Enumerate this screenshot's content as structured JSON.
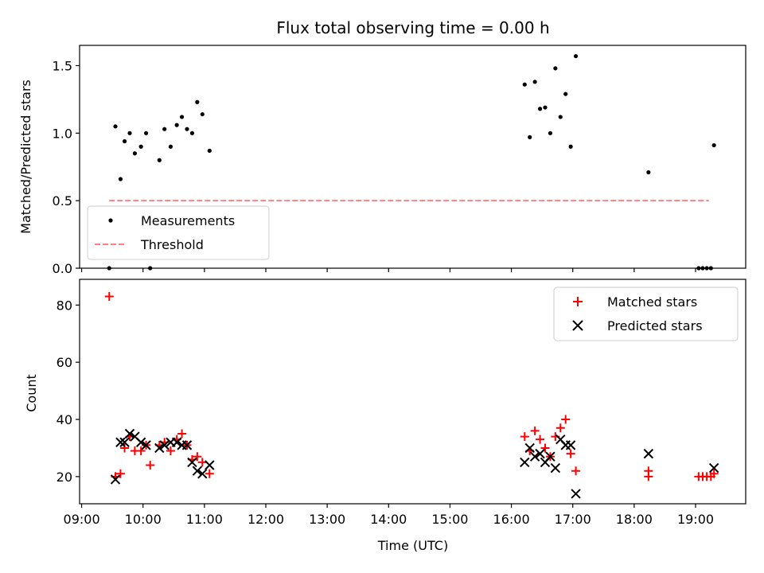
{
  "chart_data": [
    {
      "type": "scatter",
      "title": "Flux total observing time = 0.00 h",
      "ylabel": "Matched/Predicted stars",
      "ylim": [
        0,
        1.65
      ],
      "yticks": [
        "0.0",
        "0.5",
        "1.0",
        "1.5"
      ],
      "ytick_values": [
        0,
        0.5,
        1.0,
        1.5
      ],
      "legend_position": "lower-left",
      "series": [
        {
          "name": "Measurements",
          "marker": "dot",
          "color": "#000000",
          "x": [
            "09:27",
            "09:33",
            "09:38",
            "09:42",
            "09:47",
            "09:52",
            "09:58",
            "10:03",
            "10:07",
            "10:16",
            "10:21",
            "10:27",
            "10:33",
            "10:38",
            "10:43",
            "10:48",
            "10:53",
            "10:58",
            "11:05",
            "16:13",
            "16:18",
            "16:23",
            "16:28",
            "16:33",
            "16:38",
            "16:43",
            "16:48",
            "16:53",
            "16:58",
            "17:03",
            "18:14",
            "19:03",
            "19:07",
            "19:11",
            "19:15",
            "19:18"
          ],
          "y": [
            0.0,
            1.05,
            0.66,
            0.94,
            1.0,
            0.85,
            0.9,
            1.0,
            0.0,
            0.8,
            1.03,
            0.9,
            1.06,
            1.12,
            1.03,
            1.0,
            1.23,
            1.14,
            0.87,
            1.36,
            0.97,
            1.38,
            1.18,
            1.19,
            1.0,
            1.48,
            1.12,
            1.29,
            0.9,
            1.57,
            0.71,
            0.0,
            0.0,
            0.0,
            0.0,
            0.91
          ]
        },
        {
          "name": "Threshold",
          "marker": "dashed-line",
          "color": "#ff7f7f",
          "x": [
            "09:27",
            "19:13"
          ],
          "y": [
            0.5,
            0.5
          ]
        }
      ]
    },
    {
      "type": "scatter",
      "title": "",
      "xlabel": "Time (UTC)",
      "ylabel": "Count",
      "ylim": [
        10.5,
        89
      ],
      "yticks": [
        "20",
        "40",
        "60",
        "80"
      ],
      "ytick_values": [
        20,
        40,
        60,
        80
      ],
      "x_range": [
        "08:58",
        "19:49"
      ],
      "xticks": [
        "09:00",
        "10:00",
        "11:00",
        "12:00",
        "13:00",
        "14:00",
        "15:00",
        "16:00",
        "17:00",
        "18:00",
        "19:00"
      ],
      "legend_position": "top-right",
      "series": [
        {
          "name": "Matched stars",
          "marker": "plus",
          "color": "#ff0000",
          "x": [
            "09:27",
            "09:33",
            "09:38",
            "09:42",
            "09:47",
            "09:52",
            "09:58",
            "10:03",
            "10:07",
            "10:16",
            "10:21",
            "10:27",
            "10:33",
            "10:38",
            "10:43",
            "10:48",
            "10:53",
            "10:58",
            "11:05",
            "16:13",
            "16:18",
            "16:23",
            "16:28",
            "16:33",
            "16:38",
            "16:43",
            "16:48",
            "16:53",
            "16:58",
            "17:03",
            "18:14",
            "18:14",
            "19:03",
            "19:07",
            "19:11",
            "19:15",
            "19:18"
          ],
          "y": [
            83,
            20,
            21,
            30,
            34,
            29,
            29,
            31,
            24,
            31,
            32,
            29,
            33,
            35,
            31,
            26,
            27,
            25,
            21,
            34,
            29,
            36,
            33,
            30,
            27,
            34,
            37,
            40,
            28,
            22,
            22,
            20,
            20,
            20,
            20,
            20,
            21
          ]
        },
        {
          "name": "Predicted stars",
          "marker": "x",
          "color": "#000000",
          "x": [
            "09:33",
            "09:38",
            "09:42",
            "09:47",
            "09:52",
            "09:58",
            "10:03",
            "10:16",
            "10:21",
            "10:27",
            "10:33",
            "10:38",
            "10:43",
            "10:48",
            "10:53",
            "10:58",
            "11:05",
            "16:13",
            "16:18",
            "16:23",
            "16:28",
            "16:33",
            "16:38",
            "16:43",
            "16:48",
            "16:53",
            "16:58",
            "17:03",
            "18:14",
            "19:18"
          ],
          "y": [
            19,
            32,
            32,
            35,
            34,
            32,
            31,
            30,
            31,
            32,
            32,
            31,
            31,
            25,
            22,
            21,
            24,
            25,
            30,
            27,
            28,
            25,
            27,
            23,
            33,
            31,
            31,
            14,
            28,
            23
          ]
        }
      ]
    }
  ]
}
